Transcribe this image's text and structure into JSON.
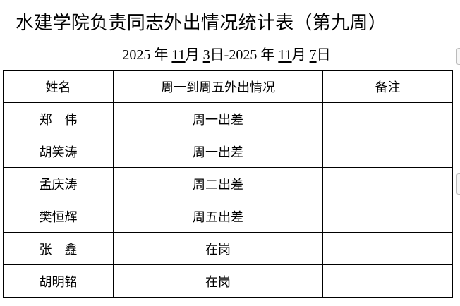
{
  "title": "水建学院负责同志外出情况统计表（第九周）",
  "date_range": {
    "start_year": "2025",
    "start_month": "11",
    "start_day": "3",
    "end_year": "2025",
    "end_month": "11",
    "end_day": "7",
    "year_label": "年",
    "month_label": "月",
    "day_label": "日",
    "separator": "-"
  },
  "table": {
    "headers": [
      "姓名",
      "周一到周五外出情况",
      "备注"
    ],
    "rows": [
      {
        "name": "郑　伟",
        "status": "周一出差",
        "note": ""
      },
      {
        "name": "胡笑涛",
        "status": "周一出差",
        "note": ""
      },
      {
        "name": "孟庆涛",
        "status": "周二出差",
        "note": ""
      },
      {
        "name": "樊恒辉",
        "status": "周五出差",
        "note": ""
      },
      {
        "name": "张　鑫",
        "status": "在岗",
        "note": ""
      },
      {
        "name": "胡明铭",
        "status": "在岗",
        "note": ""
      }
    ]
  }
}
